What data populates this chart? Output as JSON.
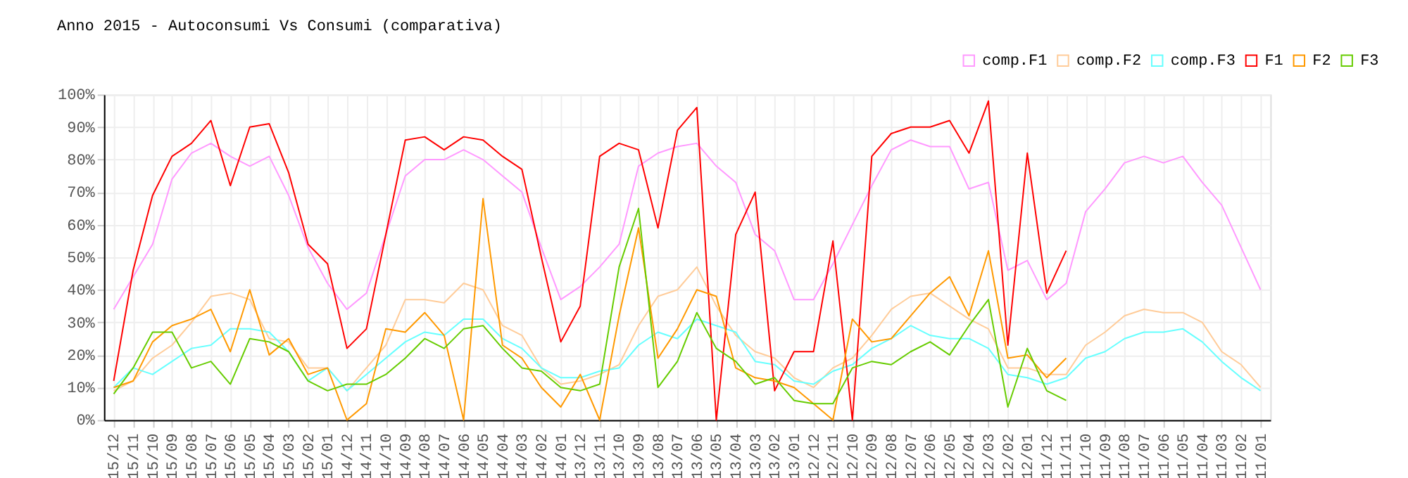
{
  "chart_data": {
    "type": "line",
    "title": "Anno 2015 - Autoconsumi Vs Consumi (comparativa)",
    "categories": [
      "15/12",
      "15/11",
      "15/10",
      "15/09",
      "15/08",
      "15/07",
      "15/06",
      "15/05",
      "15/04",
      "15/03",
      "15/02",
      "15/01",
      "14/12",
      "14/11",
      "14/10",
      "14/09",
      "14/08",
      "14/07",
      "14/06",
      "14/05",
      "14/04",
      "14/03",
      "14/02",
      "14/01",
      "13/12",
      "13/11",
      "13/10",
      "13/09",
      "13/08",
      "13/07",
      "13/06",
      "13/05",
      "13/04",
      "13/03",
      "13/02",
      "13/01",
      "12/12",
      "12/11",
      "12/10",
      "12/09",
      "12/08",
      "12/07",
      "12/06",
      "12/05",
      "12/04",
      "12/03",
      "12/02",
      "12/01",
      "11/12",
      "11/11",
      "11/10",
      "11/09",
      "11/08",
      "11/07",
      "11/06",
      "11/05",
      "11/04",
      "11/03",
      "11/02",
      "11/01"
    ],
    "series": [
      {
        "name": "comp.F1",
        "color": "#ff99ff",
        "values": [
          34,
          44,
          54,
          74,
          82,
          85,
          81,
          78,
          81,
          69,
          53,
          42,
          34,
          39,
          57,
          75,
          80,
          80,
          83,
          80,
          75,
          70,
          53,
          37,
          41,
          47,
          54,
          78,
          82,
          84,
          85,
          78,
          73,
          57,
          52,
          37,
          37,
          48,
          60,
          72,
          83,
          86,
          84,
          84,
          71,
          73,
          46,
          49,
          37,
          42,
          64,
          71,
          79,
          81,
          79,
          81,
          73,
          66,
          53,
          40
        ]
      },
      {
        "name": "comp.F2",
        "color": "#ffcc99",
        "values": [
          9,
          12,
          19,
          23,
          30,
          38,
          39,
          37,
          25,
          24,
          16,
          16,
          9,
          16,
          23,
          37,
          37,
          36,
          42,
          40,
          29,
          26,
          16,
          11,
          12,
          14,
          17,
          29,
          38,
          40,
          47,
          35,
          26,
          21,
          19,
          13,
          10,
          16,
          19,
          26,
          34,
          38,
          39,
          35,
          31,
          28,
          16,
          16,
          14,
          14,
          23,
          27,
          32,
          34,
          33,
          33,
          30,
          21,
          17,
          10
        ]
      },
      {
        "name": "comp.F3",
        "color": "#66ffff",
        "values": [
          10,
          16,
          14,
          18,
          22,
          23,
          28,
          28,
          27,
          21,
          12,
          16,
          9,
          14,
          19,
          24,
          27,
          26,
          31,
          31,
          25,
          22,
          16,
          13,
          13,
          15,
          16,
          23,
          27,
          25,
          31,
          29,
          27,
          18,
          17,
          12,
          11,
          15,
          17,
          22,
          25,
          29,
          26,
          25,
          25,
          22,
          14,
          13,
          11,
          13,
          19,
          21,
          25,
          27,
          27,
          28,
          24,
          18,
          13,
          9
        ]
      },
      {
        "name": "F1",
        "color": "#ff0000",
        "values": [
          12,
          46,
          69,
          81,
          85,
          92,
          72,
          90,
          91,
          76,
          54,
          48,
          22,
          28,
          57,
          86,
          87,
          83,
          87,
          86,
          81,
          77,
          50,
          24,
          35,
          81,
          85,
          83,
          59,
          89,
          96,
          0,
          57,
          70,
          9,
          21,
          21,
          55,
          0,
          81,
          88,
          90,
          90,
          92,
          82,
          98,
          23,
          82,
          39,
          52,
          null,
          null,
          null,
          null,
          null,
          null,
          null,
          null,
          null,
          null
        ]
      },
      {
        "name": "F2",
        "color": "#ff9900",
        "values": [
          10,
          12,
          24,
          29,
          31,
          34,
          21,
          40,
          20,
          25,
          14,
          16,
          0,
          5,
          28,
          27,
          33,
          26,
          0,
          68,
          23,
          19,
          10,
          4,
          14,
          0,
          32,
          59,
          19,
          28,
          40,
          38,
          16,
          13,
          12,
          10,
          5,
          0,
          31,
          24,
          25,
          32,
          39,
          44,
          32,
          52,
          19,
          20,
          13,
          19,
          null,
          null,
          null,
          null,
          null,
          null,
          null,
          null,
          null,
          null
        ]
      },
      {
        "name": "F3",
        "color": "#66cc00",
        "values": [
          8,
          16,
          27,
          27,
          16,
          18,
          11,
          25,
          24,
          21,
          12,
          9,
          11,
          11,
          14,
          19,
          25,
          22,
          28,
          29,
          22,
          16,
          15,
          10,
          9,
          11,
          47,
          65,
          10,
          18,
          33,
          22,
          18,
          11,
          13,
          6,
          5,
          5,
          16,
          18,
          17,
          21,
          24,
          20,
          29,
          37,
          4,
          22,
          9,
          6,
          null,
          null,
          null,
          null,
          null,
          null,
          null,
          null,
          null,
          null
        ]
      }
    ],
    "ylim": [
      0,
      100
    ],
    "yticks": [
      {
        "value": 0,
        "label": "0%"
      },
      {
        "value": 10,
        "label": "10%"
      },
      {
        "value": 20,
        "label": "20%"
      },
      {
        "value": 30,
        "label": "30%"
      },
      {
        "value": 40,
        "label": "40%"
      },
      {
        "value": 50,
        "label": "50%"
      },
      {
        "value": 60,
        "label": "60%"
      },
      {
        "value": 70,
        "label": "70%"
      },
      {
        "value": 80,
        "label": "80%"
      },
      {
        "value": 90,
        "label": "90%"
      },
      {
        "value": 100,
        "label": "100%"
      }
    ],
    "grid": true,
    "legend": "top right",
    "marker": "none",
    "line_style": "solid"
  }
}
